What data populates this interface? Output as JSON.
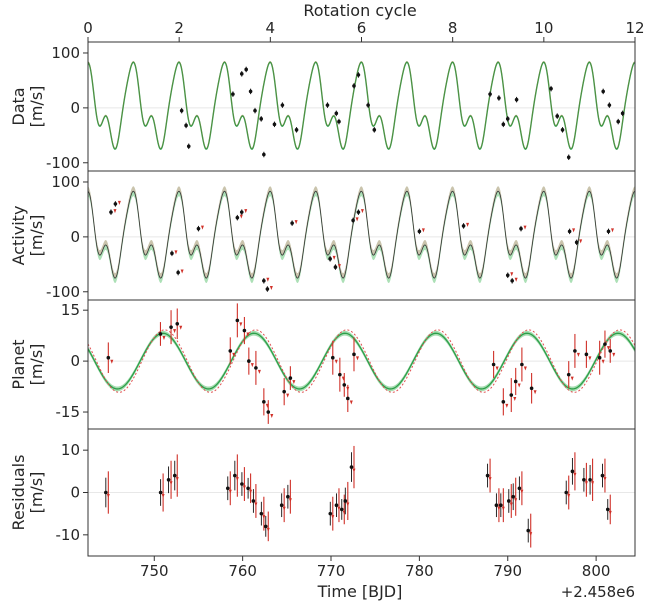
{
  "chart_data": {
    "type": "scatter",
    "top_axis": {
      "label": "Rotation cycle",
      "ticks": [
        0,
        2,
        4,
        6,
        8,
        10,
        12
      ],
      "lim": [
        0,
        12
      ]
    },
    "x_axis": {
      "label": "Time [BJD]",
      "ticks": [
        750,
        760,
        770,
        780,
        790,
        800
      ],
      "lim": [
        742.5,
        804.4
      ],
      "offset": "+2.458e6"
    },
    "period": 5.16,
    "colors": {
      "model": "#2e9e4a",
      "model_fill": "#7fcf8f",
      "alt_model": "#e05050",
      "point": "#111111",
      "point_alt": "#d03028",
      "zero_line": "#e8e8e8"
    },
    "panels": [
      {
        "name": "data",
        "ylabel": "Data\n[m/s]",
        "ylim": [
          -115,
          120
        ],
        "yticks": [
          100,
          0,
          -100
        ],
        "points": [
          [
            753.1,
            -5
          ],
          [
            753.6,
            -32
          ],
          [
            753.9,
            -70
          ],
          [
            758.9,
            25
          ],
          [
            759.9,
            62
          ],
          [
            760.4,
            70
          ],
          [
            760.9,
            30
          ],
          [
            761.4,
            -5
          ],
          [
            762.1,
            -20
          ],
          [
            762.4,
            -85
          ],
          [
            763.6,
            -30
          ],
          [
            764.5,
            5
          ],
          [
            766.1,
            -40
          ],
          [
            769.6,
            5
          ],
          [
            770.6,
            -10
          ],
          [
            770.9,
            -25
          ],
          [
            772.6,
            40
          ],
          [
            773.1,
            60
          ],
          [
            774.2,
            5
          ],
          [
            774.9,
            -40
          ],
          [
            788.0,
            25
          ],
          [
            789.0,
            18
          ],
          [
            789.5,
            -30
          ],
          [
            790.0,
            -20
          ],
          [
            791.0,
            15
          ],
          [
            794.9,
            35
          ],
          [
            795.6,
            -15
          ],
          [
            796.2,
            -40
          ],
          [
            796.9,
            -90
          ],
          [
            800.8,
            30
          ],
          [
            801.5,
            5
          ],
          [
            802.5,
            -25
          ],
          [
            803.0,
            -10
          ]
        ]
      },
      {
        "name": "activity",
        "ylabel": "Activity\n[m/s]",
        "ylim": [
          -115,
          120
        ],
        "yticks": [
          100,
          0,
          -100
        ],
        "points": [
          [
            745.1,
            45
          ],
          [
            745.6,
            60
          ],
          [
            752.0,
            -30
          ],
          [
            752.7,
            -65
          ],
          [
            755.0,
            15
          ],
          [
            759.4,
            35
          ],
          [
            759.9,
            45
          ],
          [
            762.4,
            -80
          ],
          [
            762.8,
            -95
          ],
          [
            765.6,
            25
          ],
          [
            769.9,
            -40
          ],
          [
            770.5,
            -55
          ],
          [
            772.5,
            30
          ],
          [
            773.1,
            45
          ],
          [
            780.0,
            10
          ],
          [
            785.0,
            20
          ],
          [
            790.0,
            -70
          ],
          [
            790.5,
            -80
          ],
          [
            791.5,
            15
          ],
          [
            797.0,
            10
          ],
          [
            797.8,
            -10
          ],
          [
            801.4,
            10
          ]
        ]
      },
      {
        "name": "planet",
        "ylabel": "Planet\n[m/s]",
        "ylim": [
          -20,
          18
        ],
        "yticks": [
          15,
          0,
          -15
        ],
        "amplitude": 8.2,
        "amplitude_alt": 9.2,
        "phase_zero": 748.4,
        "points": [
          {
            "x": 744.8,
            "y": 1,
            "e": 4.5
          },
          {
            "x": 750.7,
            "y": 8,
            "e": 3.5
          },
          {
            "x": 751.9,
            "y": 10,
            "e": 5
          },
          {
            "x": 752.6,
            "y": 11,
            "e": 4.5
          },
          {
            "x": 758.6,
            "y": 3,
            "e": 4
          },
          {
            "x": 759.4,
            "y": 12,
            "e": 5
          },
          {
            "x": 760.2,
            "y": 9,
            "e": 4
          },
          {
            "x": 760.7,
            "y": 0,
            "e": 4
          },
          {
            "x": 761.5,
            "y": -2,
            "e": 5
          },
          {
            "x": 762.4,
            "y": -12,
            "e": 4
          },
          {
            "x": 762.9,
            "y": -15,
            "e": 3.5
          },
          {
            "x": 764.7,
            "y": -9,
            "e": 4
          },
          {
            "x": 765.4,
            "y": -5,
            "e": 3.5
          },
          {
            "x": 770.2,
            "y": 1,
            "e": 5
          },
          {
            "x": 771.0,
            "y": -4,
            "e": 5
          },
          {
            "x": 771.5,
            "y": -7,
            "e": 3.5
          },
          {
            "x": 771.9,
            "y": -11,
            "e": 4
          },
          {
            "x": 772.6,
            "y": 2,
            "e": 5
          },
          {
            "x": 788.4,
            "y": -1,
            "e": 4
          },
          {
            "x": 789.5,
            "y": -12,
            "e": 4
          },
          {
            "x": 790.4,
            "y": -10,
            "e": 5
          },
          {
            "x": 790.9,
            "y": -6,
            "e": 4
          },
          {
            "x": 791.6,
            "y": -1,
            "e": 5
          },
          {
            "x": 792.7,
            "y": -8,
            "e": 4.5
          },
          {
            "x": 796.9,
            "y": -4,
            "e": 4
          },
          {
            "x": 797.6,
            "y": 3,
            "e": 5
          },
          {
            "x": 798.9,
            "y": 2,
            "e": 4
          },
          {
            "x": 800.4,
            "y": 1,
            "e": 5
          },
          {
            "x": 801.0,
            "y": 5,
            "e": 4
          },
          {
            "x": 801.6,
            "y": 3,
            "e": 3.5
          }
        ]
      },
      {
        "name": "residuals",
        "ylabel": "Residuals\n[m/s]",
        "ylim": [
          -15,
          15
        ],
        "yticks": [
          10,
          0,
          -10
        ],
        "points": [
          {
            "x": 744.8,
            "y": 0,
            "e": 5
          },
          {
            "x": 751.0,
            "y": 0,
            "e": 4.5
          },
          {
            "x": 751.9,
            "y": 3,
            "e": 4.5
          },
          {
            "x": 752.6,
            "y": 4,
            "e": 5
          },
          {
            "x": 758.6,
            "y": 1,
            "e": 4
          },
          {
            "x": 759.4,
            "y": 4,
            "e": 5
          },
          {
            "x": 760.2,
            "y": 2,
            "e": 4
          },
          {
            "x": 760.9,
            "y": 1,
            "e": 3.5
          },
          {
            "x": 761.5,
            "y": -2,
            "e": 4
          },
          {
            "x": 762.4,
            "y": -5,
            "e": 4
          },
          {
            "x": 762.9,
            "y": -8,
            "e": 3.5
          },
          {
            "x": 764.7,
            "y": -3,
            "e": 4
          },
          {
            "x": 765.4,
            "y": -1,
            "e": 4
          },
          {
            "x": 770.2,
            "y": -5,
            "e": 4
          },
          {
            "x": 770.9,
            "y": -3,
            "e": 4
          },
          {
            "x": 771.5,
            "y": -4,
            "e": 3.5
          },
          {
            "x": 771.9,
            "y": -2,
            "e": 4.5
          },
          {
            "x": 772.6,
            "y": 6,
            "e": 5
          },
          {
            "x": 788.0,
            "y": 4,
            "e": 4
          },
          {
            "x": 789.0,
            "y": -3,
            "e": 4
          },
          {
            "x": 789.5,
            "y": -3,
            "e": 4
          },
          {
            "x": 790.4,
            "y": -2,
            "e": 4
          },
          {
            "x": 790.9,
            "y": -1,
            "e": 4.5
          },
          {
            "x": 791.6,
            "y": 1,
            "e": 4
          },
          {
            "x": 792.6,
            "y": -9,
            "e": 4
          },
          {
            "x": 796.9,
            "y": 0,
            "e": 4
          },
          {
            "x": 797.6,
            "y": 5,
            "e": 4.5
          },
          {
            "x": 798.9,
            "y": 3,
            "e": 4
          },
          {
            "x": 799.6,
            "y": 3,
            "e": 5
          },
          {
            "x": 801.0,
            "y": 4,
            "e": 4
          },
          {
            "x": 801.6,
            "y": -4,
            "e": 3.5
          }
        ]
      }
    ]
  }
}
